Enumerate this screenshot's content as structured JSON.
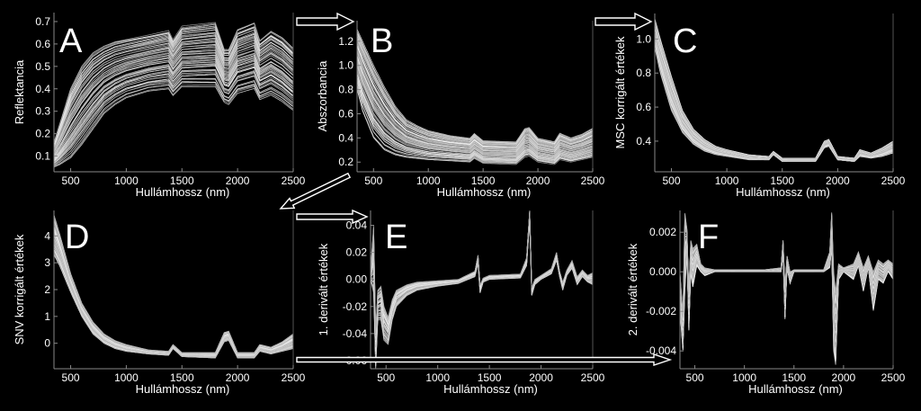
{
  "chart_data": [
    {
      "id": "A",
      "type": "line",
      "panel_letter": "A",
      "xlabel": "Hullámhossz (nm)",
      "ylabel": "Reflektancia",
      "xlim": [
        350,
        2500
      ],
      "ylim": [
        0.03,
        0.74
      ],
      "xticks": [
        500,
        1000,
        1500,
        2000,
        2500
      ],
      "yticks": [
        0.1,
        0.2,
        0.3,
        0.4,
        0.5,
        0.6,
        0.7
      ],
      "ytick_labels": [
        "0.1",
        "0.2",
        "0.3",
        "0.4",
        "0.5",
        "0.6",
        "0.7"
      ],
      "n_spectra": 60,
      "envelope": {
        "x": [
          350,
          400,
          500,
          600,
          700,
          800,
          900,
          1000,
          1200,
          1380,
          1420,
          1500,
          1800,
          1880,
          1920,
          2000,
          2150,
          2200,
          2300,
          2400,
          2500
        ],
        "low": [
          0.05,
          0.06,
          0.09,
          0.15,
          0.22,
          0.29,
          0.33,
          0.36,
          0.39,
          0.4,
          0.37,
          0.41,
          0.41,
          0.34,
          0.33,
          0.38,
          0.4,
          0.35,
          0.37,
          0.34,
          0.3
        ],
        "high": [
          0.16,
          0.24,
          0.4,
          0.5,
          0.56,
          0.59,
          0.61,
          0.62,
          0.64,
          0.66,
          0.62,
          0.68,
          0.7,
          0.58,
          0.58,
          0.67,
          0.7,
          0.62,
          0.66,
          0.63,
          0.58
        ]
      }
    },
    {
      "id": "B",
      "type": "line",
      "panel_letter": "B",
      "xlabel": "Hullámhossz (nm)",
      "ylabel": "Abszorbancia",
      "xlim": [
        350,
        2500
      ],
      "ylim": [
        0.12,
        1.37
      ],
      "xticks": [
        500,
        1000,
        1500,
        2000,
        2500
      ],
      "yticks": [
        0.2,
        0.4,
        0.6,
        0.8,
        1.0,
        1.2
      ],
      "ytick_labels": [
        "0.2",
        "0.4",
        "0.6",
        "0.8",
        "1.0",
        "1.2"
      ],
      "n_spectra": 60,
      "envelope": {
        "x": [
          350,
          400,
          500,
          600,
          700,
          800,
          900,
          1000,
          1200,
          1380,
          1420,
          1500,
          1800,
          1880,
          1920,
          2000,
          2150,
          2200,
          2300,
          2400,
          2500
        ],
        "low": [
          0.8,
          0.62,
          0.4,
          0.3,
          0.26,
          0.24,
          0.23,
          0.22,
          0.21,
          0.2,
          0.23,
          0.19,
          0.18,
          0.24,
          0.25,
          0.2,
          0.18,
          0.22,
          0.2,
          0.22,
          0.24
        ],
        "high": [
          1.3,
          1.2,
          1.0,
          0.82,
          0.66,
          0.55,
          0.5,
          0.46,
          0.42,
          0.4,
          0.44,
          0.38,
          0.37,
          0.48,
          0.49,
          0.4,
          0.37,
          0.44,
          0.4,
          0.43,
          0.48
        ]
      }
    },
    {
      "id": "C",
      "type": "line",
      "panel_letter": "C",
      "xlabel": "Hullámhossz (nm)",
      "ylabel": "MSC korrigált értékek",
      "xlim": [
        350,
        2500
      ],
      "ylim": [
        0.22,
        1.15
      ],
      "xticks": [
        500,
        1000,
        1500,
        2000,
        2500
      ],
      "yticks": [
        0.4,
        0.6,
        0.8,
        1.0
      ],
      "ytick_labels": [
        "0.4",
        "0.6",
        "0.8",
        "1.0"
      ],
      "n_spectra": 60,
      "envelope": {
        "x": [
          350,
          400,
          500,
          600,
          700,
          800,
          900,
          1000,
          1200,
          1380,
          1420,
          1500,
          1800,
          1880,
          1920,
          2000,
          2150,
          2200,
          2300,
          2400,
          2500
        ],
        "low": [
          0.95,
          0.8,
          0.58,
          0.45,
          0.38,
          0.34,
          0.32,
          0.31,
          0.29,
          0.29,
          0.32,
          0.28,
          0.28,
          0.36,
          0.37,
          0.29,
          0.28,
          0.31,
          0.3,
          0.31,
          0.33
        ],
        "high": [
          1.12,
          1.0,
          0.78,
          0.58,
          0.47,
          0.41,
          0.37,
          0.35,
          0.32,
          0.31,
          0.34,
          0.3,
          0.3,
          0.4,
          0.41,
          0.31,
          0.3,
          0.35,
          0.33,
          0.36,
          0.4
        ]
      }
    },
    {
      "id": "D",
      "type": "line",
      "panel_letter": "D",
      "xlabel": "Hullámhossz (nm)",
      "ylabel": "SNV korrigált értékek",
      "xlim": [
        350,
        2500
      ],
      "ylim": [
        -0.95,
        4.95
      ],
      "xticks": [
        500,
        1000,
        1500,
        2000,
        2500
      ],
      "yticks": [
        0,
        1,
        2,
        3,
        4
      ],
      "ytick_labels": [
        "0",
        "1",
        "2",
        "3",
        "4"
      ],
      "n_spectra": 60,
      "envelope": {
        "x": [
          350,
          400,
          500,
          600,
          700,
          800,
          900,
          1000,
          1200,
          1380,
          1420,
          1500,
          1800,
          1880,
          1920,
          2000,
          2150,
          2200,
          2300,
          2400,
          2500
        ],
        "low": [
          3.3,
          2.9,
          1.9,
          1.0,
          0.35,
          0.0,
          -0.2,
          -0.3,
          -0.4,
          -0.45,
          -0.2,
          -0.5,
          -0.55,
          0.05,
          0.1,
          -0.55,
          -0.55,
          -0.3,
          -0.4,
          -0.3,
          -0.2
        ],
        "high": [
          4.8,
          4.1,
          2.6,
          1.5,
          0.8,
          0.35,
          0.1,
          -0.05,
          -0.25,
          -0.3,
          -0.05,
          -0.35,
          -0.35,
          0.4,
          0.45,
          -0.35,
          -0.35,
          -0.05,
          -0.15,
          0.05,
          0.35
        ]
      }
    },
    {
      "id": "E",
      "type": "line",
      "panel_letter": "E",
      "xlabel": "Hullámhossz (nm)",
      "ylabel": "1. derivált értékek",
      "xlim": [
        350,
        2500
      ],
      "ylim": [
        -0.066,
        0.051
      ],
      "xticks": [
        500,
        1000,
        1500,
        2000,
        2500
      ],
      "yticks": [
        -0.06,
        -0.04,
        -0.02,
        0.0,
        0.02,
        0.04
      ],
      "ytick_labels": [
        "-0.06",
        "-0.04",
        "-0.02",
        "0.00",
        "0.02",
        "0.04"
      ],
      "n_spectra": 40,
      "envelope": {
        "x": [
          350,
          380,
          400,
          420,
          450,
          480,
          520,
          560,
          600,
          700,
          800,
          1000,
          1200,
          1360,
          1390,
          1410,
          1440,
          1500,
          1800,
          1860,
          1890,
          1910,
          1940,
          2000,
          2100,
          2150,
          2180,
          2210,
          2250,
          2300,
          2350,
          2400,
          2450,
          2500
        ],
        "low": [
          0.0,
          -0.01,
          -0.066,
          -0.03,
          -0.03,
          -0.045,
          -0.048,
          -0.03,
          -0.02,
          -0.012,
          -0.008,
          -0.005,
          -0.003,
          0.002,
          0.012,
          -0.01,
          -0.002,
          0.0,
          0.001,
          0.01,
          0.044,
          -0.012,
          -0.004,
          0.0,
          0.004,
          0.014,
          0.002,
          -0.008,
          0.003,
          0.008,
          -0.004,
          0.002,
          -0.002,
          -0.004
        ],
        "high": [
          0.005,
          0.04,
          -0.04,
          -0.008,
          -0.005,
          -0.02,
          -0.028,
          -0.015,
          -0.008,
          -0.004,
          -0.002,
          -0.001,
          0.0,
          0.006,
          0.018,
          -0.004,
          0.001,
          0.003,
          0.004,
          0.016,
          0.051,
          -0.006,
          0.0,
          0.003,
          0.008,
          0.02,
          0.006,
          -0.002,
          0.007,
          0.014,
          0.002,
          0.007,
          0.003,
          0.005
        ]
      }
    },
    {
      "id": "F",
      "type": "line",
      "panel_letter": "F",
      "xlabel": "Hullámhossz (nm)",
      "ylabel": "2. derivált értékek",
      "xlim": [
        350,
        2500
      ],
      "ylim": [
        -0.0049,
        0.0031
      ],
      "xticks": [
        500,
        1000,
        1500,
        2000,
        2500
      ],
      "yticks": [
        -0.004,
        -0.002,
        0.0,
        0.002
      ],
      "ytick_labels": [
        "-0.004",
        "-0.002",
        "0.000",
        "0.002"
      ],
      "n_spectra": 40,
      "envelope": {
        "x": [
          350,
          380,
          400,
          420,
          440,
          460,
          480,
          520,
          560,
          600,
          700,
          800,
          1000,
          1200,
          1370,
          1390,
          1410,
          1430,
          1460,
          1500,
          1800,
          1860,
          1880,
          1900,
          1920,
          1950,
          2000,
          2100,
          2150,
          2200,
          2250,
          2300,
          2350,
          2400,
          2450,
          2500
        ],
        "low": [
          -0.002,
          -0.004,
          -0.001,
          0.001,
          -0.003,
          0.0,
          -0.0008,
          0.0003,
          0.0,
          -0.0002,
          0.0,
          0.0,
          0.0,
          0.0,
          0.0,
          0.0008,
          -0.0024,
          0.0002,
          -0.0006,
          0.0,
          0.0,
          0.0002,
          0.0012,
          -0.004,
          -0.0047,
          -0.0004,
          0.0,
          -0.0004,
          0.0003,
          -0.001,
          0.0002,
          -0.002,
          -0.0004,
          -0.0006,
          0.0,
          -0.0004
        ],
        "high": [
          0.0,
          -0.0022,
          0.003,
          0.0022,
          -0.001,
          0.0016,
          0.0012,
          0.0014,
          0.0004,
          0.0002,
          0.0001,
          0.0001,
          0.0001,
          0.0001,
          0.0002,
          0.0016,
          -0.0008,
          0.0008,
          0.0,
          0.0001,
          0.0001,
          0.001,
          0.003,
          0.0,
          -0.001,
          0.0004,
          0.0002,
          0.0004,
          0.001,
          0.0002,
          0.0008,
          0.0,
          0.0006,
          0.0004,
          0.0006,
          0.0004
        ]
      }
    }
  ]
}
